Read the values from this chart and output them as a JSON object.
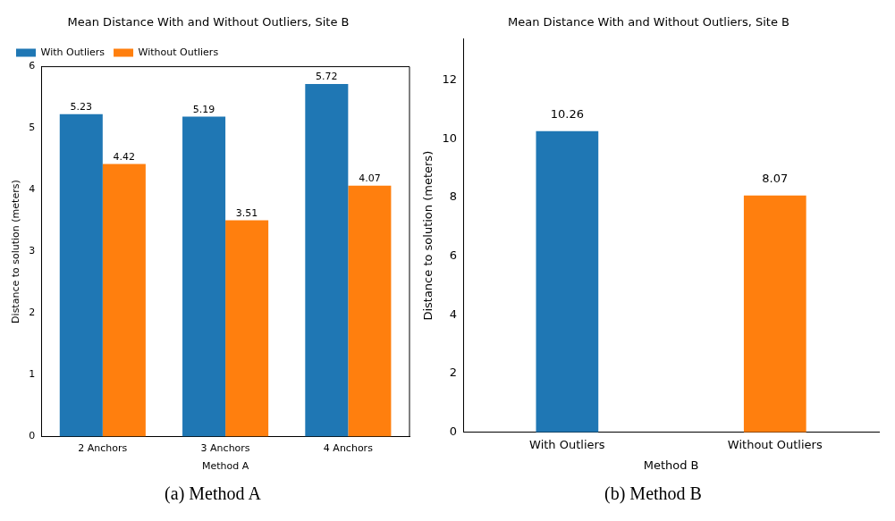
{
  "chart_data": [
    {
      "type": "bar",
      "title": "Mean Distance With and Without Outliers, Site B",
      "xlabel": "Method A",
      "ylabel": "Distance to solution (meters)",
      "categories": [
        "2 Anchors",
        "3 Anchors",
        "4 Anchors"
      ],
      "series": [
        {
          "name": "With Outliers",
          "color": "#1f77b4",
          "values": [
            5.23,
            5.19,
            5.72
          ]
        },
        {
          "name": "Without Outliers",
          "color": "#ff7f0e",
          "values": [
            4.42,
            3.51,
            4.07
          ]
        }
      ],
      "ylim": [
        0,
        6
      ],
      "yticks": [
        0,
        1,
        2,
        3,
        4,
        5,
        6
      ],
      "legend": "top left",
      "data_labels": true,
      "annotations": [
        "(a) Method A"
      ]
    },
    {
      "type": "bar",
      "title": "Mean Distance With and Without Outliers, Site B",
      "xlabel": "Method B",
      "ylabel": "Distance to solution (meters)",
      "categories": [
        "With Outliers",
        "Without Outliers"
      ],
      "values": [
        10.26,
        8.07
      ],
      "colors": [
        "#1f77b4",
        "#ff7f0e"
      ],
      "ylim": [
        0,
        13.4
      ],
      "yticks": [
        0,
        2,
        4,
        6,
        8,
        10,
        12
      ],
      "data_labels": true,
      "annotations": [
        "(b) Method B"
      ]
    }
  ]
}
